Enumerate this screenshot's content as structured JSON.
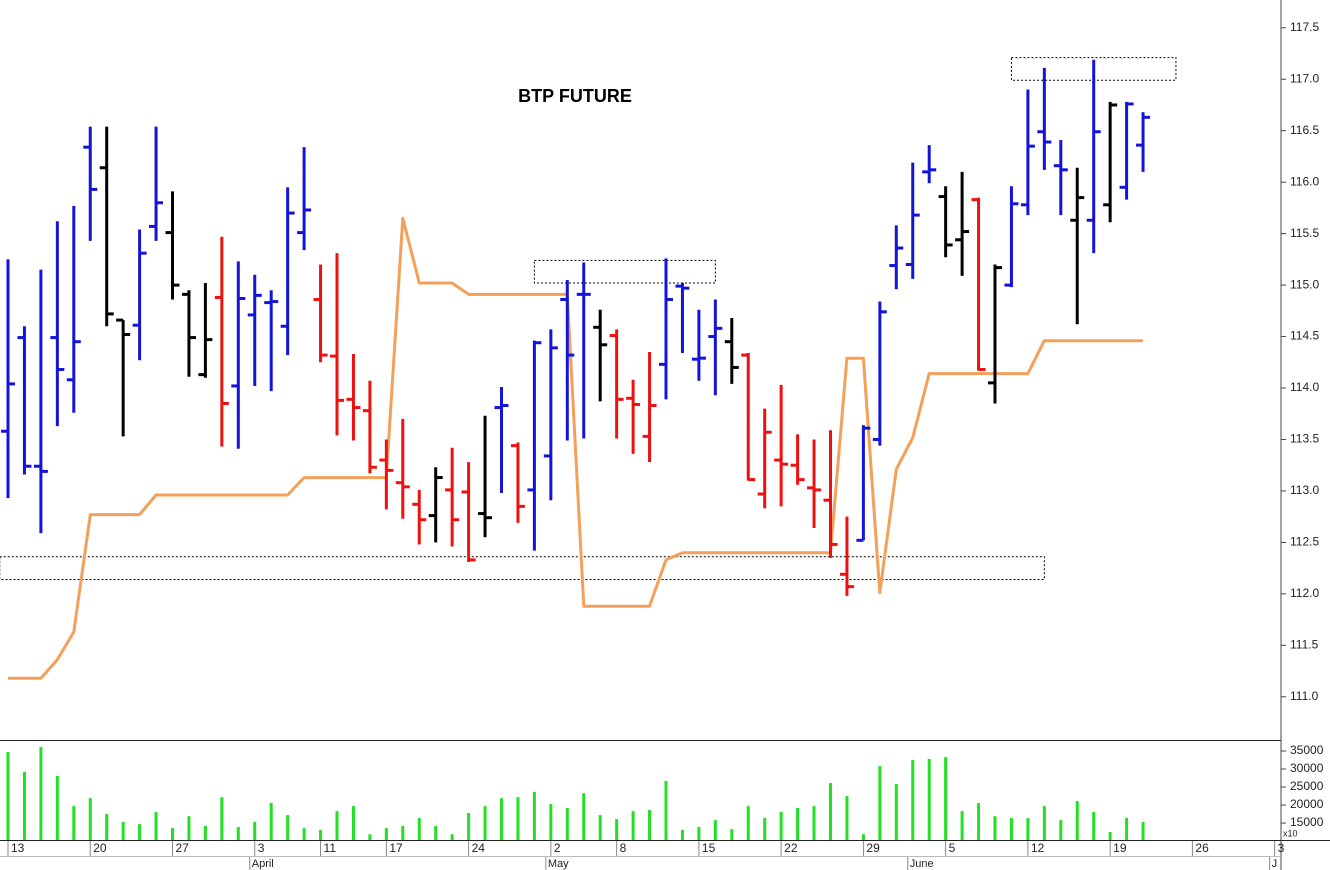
{
  "chart_data": {
    "type": "ohlc",
    "title": "BTP FUTURE",
    "categories": [
      "13",
      null,
      null,
      null,
      null,
      "20",
      null,
      null,
      null,
      null,
      "27",
      null,
      null,
      null,
      null,
      "3",
      null,
      null,
      null,
      "11",
      null,
      null,
      null,
      "17",
      null,
      null,
      null,
      null,
      "24",
      null,
      null,
      null,
      null,
      "2",
      null,
      null,
      null,
      "8",
      null,
      null,
      null,
      null,
      "15",
      null,
      null,
      null,
      null,
      "22",
      null,
      null,
      null,
      null,
      "29",
      null,
      null,
      null,
      null,
      "5",
      null,
      null,
      null,
      null,
      "12",
      null,
      null,
      null,
      null,
      "19",
      null,
      null,
      null,
      null,
      "26",
      null,
      null,
      null,
      null,
      "3"
    ],
    "months": [
      null,
      null,
      null,
      null,
      null,
      null,
      null,
      null,
      null,
      null,
      null,
      null,
      null,
      null,
      null,
      "April",
      null,
      null,
      null,
      null,
      null,
      null,
      null,
      null,
      null,
      null,
      null,
      null,
      null,
      null,
      null,
      null,
      null,
      "May",
      null,
      null,
      null,
      null,
      null,
      null,
      null,
      null,
      null,
      null,
      null,
      null,
      null,
      null,
      null,
      null,
      null,
      null,
      null,
      null,
      null,
      "June",
      null,
      null,
      null,
      null,
      null,
      null,
      null,
      null,
      null,
      null,
      null,
      null,
      null,
      null,
      null,
      null,
      null,
      null,
      null,
      null,
      null,
      "J"
    ],
    "ylim": [
      110.58,
      117.77
    ],
    "yticks": [
      {
        "value": 111,
        "label": "111.0"
      },
      111.5,
      {
        "value": 112,
        "label": "112.0"
      },
      112.5,
      {
        "value": 113,
        "label": "113.0"
      },
      113.5,
      {
        "value": 114,
        "label": "114.0"
      },
      114.5,
      {
        "value": 115,
        "label": "115.0"
      },
      115.5,
      {
        "value": 116,
        "label": "116.0"
      },
      116.5,
      {
        "value": 117,
        "label": "117.0"
      },
      117.5
    ],
    "open": [
      113.58,
      114.49,
      113.24,
      114.49,
      114.08,
      116.34,
      116.14,
      114.66,
      114.61,
      115.57,
      115.51,
      114.91,
      114.13,
      114.88,
      114.02,
      114.71,
      114.83,
      114.6,
      115.51,
      114.86,
      114.31,
      113.89,
      113.78,
      113.3,
      113.08,
      112.87,
      112.76,
      113.01,
      112.99,
      112.78,
      113.81,
      113.44,
      113.01,
      113.34,
      114.86,
      114.91,
      114.59,
      114.51,
      113.9,
      113.53,
      114.23,
      114.99,
      114.28,
      114.5,
      114.45,
      114.32,
      112.97,
      113.3,
      113.25,
      113.03,
      112.91,
      112.19,
      112.52,
      113.5,
      115.19,
      115.2,
      116.1,
      115.86,
      115.44,
      115.83,
      114.05,
      115.0,
      115.78,
      116.49,
      116.16,
      115.63,
      115.63,
      115.78,
      115.95,
      116.36,
      null,
      null,
      null,
      null,
      null,
      null,
      null,
      null
    ],
    "high": [
      115.25,
      114.6,
      115.15,
      115.62,
      115.77,
      116.54,
      116.54,
      114.66,
      115.54,
      116.54,
      115.91,
      114.95,
      115.02,
      115.47,
      115.23,
      115.1,
      114.95,
      115.95,
      116.34,
      115.2,
      115.31,
      114.33,
      114.07,
      113.5,
      113.7,
      113.01,
      113.23,
      113.42,
      113.28,
      113.73,
      114.01,
      113.47,
      114.46,
      114.57,
      115.05,
      115.22,
      114.76,
      114.57,
      114.08,
      114.35,
      115.26,
      115.02,
      114.76,
      114.86,
      114.68,
      114.34,
      113.8,
      114.03,
      113.55,
      113.5,
      113.59,
      112.75,
      113.64,
      114.84,
      115.58,
      116.19,
      116.36,
      115.96,
      116.1,
      115.85,
      115.2,
      115.96,
      116.9,
      117.11,
      116.41,
      116.14,
      117.19,
      116.78,
      116.78,
      116.68,
      null,
      null,
      null,
      null,
      null,
      null,
      null,
      null
    ],
    "low": [
      112.93,
      113.16,
      112.59,
      113.63,
      113.76,
      115.43,
      114.6,
      113.53,
      114.27,
      115.43,
      114.86,
      114.11,
      114.1,
      113.43,
      113.41,
      114.02,
      113.97,
      114.32,
      115.34,
      114.25,
      113.54,
      113.49,
      113.17,
      112.82,
      112.73,
      112.48,
      112.5,
      112.46,
      112.31,
      112.55,
      112.98,
      112.69,
      112.42,
      112.91,
      113.49,
      113.51,
      113.87,
      113.51,
      113.36,
      113.28,
      113.89,
      114.34,
      114.07,
      113.93,
      114.04,
      113.1,
      112.83,
      112.85,
      113.06,
      112.64,
      112.35,
      111.98,
      112.52,
      113.44,
      114.96,
      115.06,
      115.99,
      115.27,
      115.09,
      114.17,
      113.85,
      114.98,
      115.68,
      116.12,
      115.68,
      114.62,
      115.31,
      115.61,
      115.83,
      116.1,
      null,
      null,
      null,
      null,
      null,
      null,
      null,
      null
    ],
    "close": [
      114.04,
      113.24,
      113.19,
      114.18,
      114.45,
      115.93,
      114.72,
      114.52,
      115.31,
      115.8,
      115.0,
      114.49,
      114.47,
      113.85,
      114.87,
      114.9,
      114.84,
      115.7,
      115.73,
      114.32,
      113.88,
      113.81,
      113.23,
      113.2,
      113.04,
      112.72,
      113.13,
      112.72,
      112.33,
      112.74,
      113.83,
      112.85,
      114.44,
      114.39,
      114.32,
      114.91,
      114.42,
      113.89,
      113.84,
      113.83,
      114.86,
      114.97,
      114.29,
      114.58,
      114.2,
      113.11,
      113.57,
      113.26,
      113.11,
      113.01,
      112.48,
      112.07,
      113.61,
      114.74,
      115.36,
      115.68,
      116.12,
      115.39,
      115.52,
      114.18,
      115.17,
      115.79,
      116.35,
      116.39,
      116.12,
      115.85,
      116.49,
      116.75,
      116.76,
      116.63,
      null,
      null,
      null,
      null,
      null,
      null,
      null,
      null
    ],
    "colors": [
      "#1414d8",
      "#1414d8",
      "#1414d8",
      "#1414d8",
      "#1414d8",
      "#1414d8",
      "#000000",
      "#000000",
      "#1414d8",
      "#1414d8",
      "#000000",
      "#000000",
      "#000000",
      "#ee1111",
      "#1414d8",
      "#1414d8",
      "#1414d8",
      "#1414d8",
      "#1414d8",
      "#ee1111",
      "#ee1111",
      "#ee1111",
      "#ee1111",
      "#ee1111",
      "#ee1111",
      "#ee1111",
      "#000000",
      "#ee1111",
      "#ee1111",
      "#000000",
      "#1414d8",
      "#ee1111",
      "#1414d8",
      "#1414d8",
      "#1414d8",
      "#1414d8",
      "#000000",
      "#ee1111",
      "#ee1111",
      "#ee1111",
      "#1414d8",
      "#1414d8",
      "#1414d8",
      "#1414d8",
      "#000000",
      "#ee1111",
      "#ee1111",
      "#ee1111",
      "#ee1111",
      "#ee1111",
      "#ee1111",
      "#ee1111",
      "#1414d8",
      "#1414d8",
      "#1414d8",
      "#1414d8",
      "#1414d8",
      "#000000",
      "#000000",
      "#ee1111",
      "#000000",
      "#1414d8",
      "#1414d8",
      "#1414d8",
      "#1414d8",
      "#000000",
      "#1414d8",
      "#000000",
      "#1414d8",
      "#1414d8",
      null,
      null,
      null,
      null,
      null,
      null,
      null,
      null
    ],
    "line": {
      "color": "#f5a05a",
      "values": [
        111.18,
        111.18,
        111.18,
        111.36,
        111.63,
        112.77,
        112.77,
        112.77,
        112.77,
        112.96,
        112.96,
        112.96,
        112.96,
        112.96,
        112.96,
        112.96,
        112.96,
        112.96,
        113.13,
        113.13,
        113.13,
        113.13,
        113.13,
        113.13,
        115.65,
        115.02,
        115.02,
        115.02,
        114.91,
        114.91,
        114.91,
        114.91,
        114.91,
        114.91,
        114.91,
        111.88,
        111.88,
        111.88,
        111.88,
        111.88,
        112.33,
        112.4,
        112.4,
        112.4,
        112.4,
        112.4,
        112.4,
        112.4,
        112.4,
        112.4,
        112.4,
        114.29,
        114.29,
        112.01,
        113.21,
        113.52,
        114.14,
        114.14,
        114.14,
        114.14,
        114.14,
        114.14,
        114.14,
        114.46,
        114.46,
        114.46,
        114.46,
        114.46,
        114.46,
        114.46,
        null,
        null,
        null,
        null,
        null,
        null,
        null,
        null
      ]
    },
    "zones": [
      {
        "xlim": [
          61,
          71
        ],
        "ylim": [
          116.99,
          117.21
        ]
      },
      {
        "xlim": [
          32,
          43
        ],
        "ylim": [
          115.02,
          115.24
        ]
      },
      {
        "xlim": [
          -0.5,
          63
        ],
        "ylim": [
          112.14,
          112.36
        ]
      }
    ],
    "volume": {
      "type": "bar",
      "color": "#22e022",
      "ylim": [
        10300,
        37500
      ],
      "yticks": [
        15000,
        20000,
        25000,
        30000,
        35000
      ],
      "scale_label": "x10",
      "values": [
        34700,
        29200,
        36100,
        28100,
        19700,
        21900,
        17500,
        15300,
        14700,
        18100,
        13600,
        16900,
        14200,
        22200,
        13900,
        15300,
        20600,
        17200,
        13600,
        13100,
        18300,
        19700,
        11900,
        13600,
        14200,
        16400,
        14200,
        11900,
        17800,
        19700,
        21900,
        22200,
        23600,
        20300,
        19200,
        23300,
        17200,
        16100,
        18300,
        18600,
        26700,
        13100,
        13900,
        15800,
        13300,
        19700,
        16400,
        18100,
        19200,
        19700,
        26100,
        22500,
        11900,
        30800,
        25800,
        32500,
        32800,
        33300,
        18300,
        20600,
        16900,
        16400,
        16400,
        19700,
        15800,
        21100,
        18100,
        12500,
        16400,
        15300,
        null,
        null,
        null,
        null,
        null,
        null,
        null,
        null
      ]
    }
  }
}
